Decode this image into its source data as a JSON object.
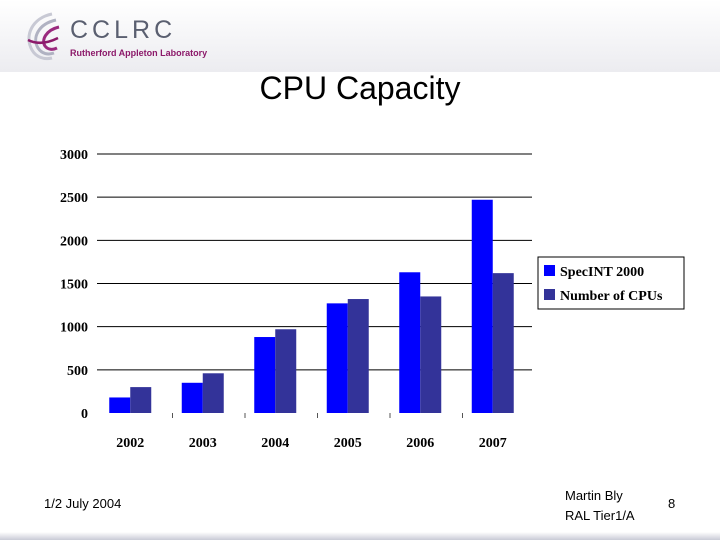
{
  "logo": {
    "name": "CCLRC",
    "subtitle": "Rutherford Appleton Laboratory"
  },
  "slide": {
    "title": "CPU Capacity"
  },
  "footer": {
    "date": "1/2 July 2004",
    "author": "Martin Bly",
    "event": "RAL Tier1/A",
    "page": "8"
  },
  "chart_data": {
    "type": "bar",
    "title": "",
    "xlabel": "",
    "ylabel": "",
    "categories": [
      "2002",
      "2003",
      "2004",
      "2005",
      "2006",
      "2007"
    ],
    "series": [
      {
        "name": "SpecINT 2000",
        "values": [
          180,
          350,
          880,
          1270,
          1630,
          2470
        ],
        "color": "#0000ff"
      },
      {
        "name": "Number of CPUs",
        "values": [
          300,
          460,
          970,
          1320,
          1350,
          1620
        ],
        "color": "#333399"
      }
    ],
    "ylim": [
      0,
      3000
    ],
    "yticks": [
      "0",
      "500",
      "1000",
      "1500",
      "2000",
      "2500",
      "3000"
    ],
    "grid": true,
    "legend_position": "right"
  }
}
